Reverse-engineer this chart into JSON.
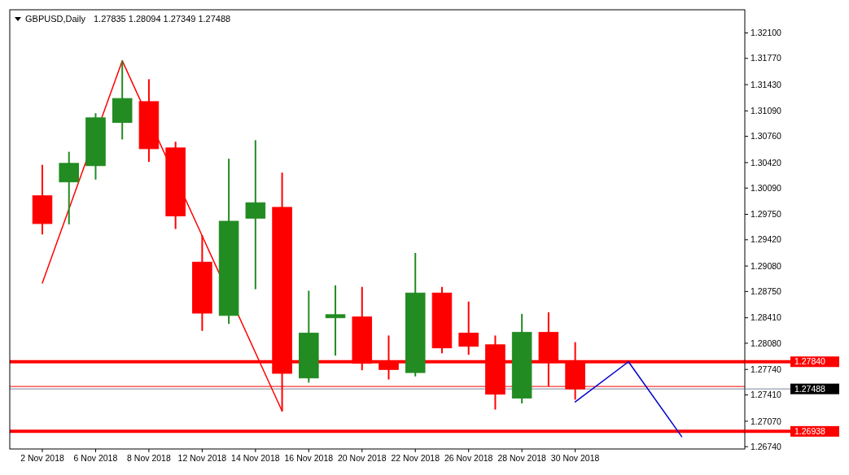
{
  "chart_data": {
    "type": "candlestick",
    "title": "GBPUSD,Daily",
    "subtitle": "1.27835 1.28094 1.27349 1.27488",
    "categories": [
      "2 Nov 2018",
      null,
      "6 Nov 2018",
      null,
      "8 Nov 2018",
      null,
      "12 Nov 2018",
      null,
      "14 Nov 2018",
      null,
      "16 Nov 2018",
      null,
      "20 Nov 2018",
      null,
      "22 Nov 2018",
      null,
      "26 Nov 2018",
      null,
      "28 Nov 2018",
      null,
      "30 Nov 2018",
      null,
      null,
      null,
      null,
      null,
      null
    ],
    "series": [
      {
        "ohlc": [
          [
            1.2999,
            1.3039,
            1.2949,
            1.2963
          ],
          [
            1.3017,
            1.3056,
            1.2962,
            1.3041
          ],
          [
            1.3038,
            1.3106,
            1.302,
            1.31
          ],
          [
            1.3094,
            1.3174,
            1.3072,
            1.3125
          ],
          [
            1.3121,
            1.315,
            1.3043,
            1.306
          ],
          [
            1.3061,
            1.3069,
            1.2956,
            1.2973
          ],
          [
            1.2913,
            1.2948,
            1.2824,
            1.2847
          ],
          [
            1.2844,
            1.3047,
            1.2833,
            1.2966
          ],
          [
            1.297,
            1.3071,
            1.2878,
            1.299
          ],
          [
            1.2984,
            1.3029,
            1.272,
            1.2769
          ],
          [
            1.2763,
            1.2876,
            1.2757,
            1.2821
          ],
          [
            1.2841,
            1.2883,
            1.2792,
            1.2845
          ],
          [
            1.2842,
            1.2881,
            1.2773,
            1.2782
          ],
          [
            1.2783,
            1.2818,
            1.2761,
            1.2774
          ],
          [
            1.277,
            1.2925,
            1.2765,
            1.2873
          ],
          [
            1.2873,
            1.2881,
            1.2795,
            1.2802
          ],
          [
            1.2821,
            1.2862,
            1.2793,
            1.2804
          ],
          [
            1.2806,
            1.2818,
            1.2722,
            1.2742
          ],
          [
            1.2737,
            1.2846,
            1.273,
            1.2822
          ],
          [
            1.2822,
            1.2848,
            1.2752,
            1.2783
          ],
          [
            1.27835,
            1.28094,
            1.27349,
            1.27488
          ],
          null,
          null,
          null,
          null,
          null,
          null
        ],
        "colors": [
          "#ff0000",
          "#228b22",
          "#228b22",
          "#228b22",
          "#ff0000",
          "#ff0000",
          "#ff0000",
          "#228b22",
          "#228b22",
          "#ff0000",
          "#228b22",
          "#228b22",
          "#ff0000",
          "#ff0000",
          "#228b22",
          "#ff0000",
          "#ff0000",
          "#ff0000",
          "#228b22",
          "#ff0000",
          "#ff0000",
          null,
          null,
          null,
          null,
          null,
          null
        ]
      },
      {
        "type": "line",
        "color": "#ff0000",
        "values": [
          1.2886,
          null,
          null,
          1.3174,
          null,
          null,
          null,
          null,
          null,
          1.272,
          null,
          null,
          null,
          null,
          null,
          null,
          null,
          null,
          null,
          null,
          null,
          null,
          null,
          null,
          null,
          null,
          null
        ]
      },
      {
        "type": "line",
        "color": "#0000cc",
        "values": [
          null,
          null,
          null,
          null,
          null,
          null,
          null,
          null,
          null,
          null,
          null,
          null,
          null,
          null,
          null,
          null,
          null,
          null,
          null,
          null,
          1.2732,
          null,
          1.2784,
          null,
          1.2687,
          null,
          null
        ]
      }
    ],
    "ylim": [
      1.2671,
      1.324
    ],
    "yticks": [
      {
        "value": 1.321,
        "label": "1.32100"
      },
      {
        "value": 1.3177,
        "label": "1.31770"
      },
      {
        "value": 1.3143,
        "label": "1.31430"
      },
      {
        "value": 1.3109,
        "label": "1.31090"
      },
      {
        "value": 1.3076,
        "label": "1.30760"
      },
      {
        "value": 1.3042,
        "label": "1.30420"
      },
      {
        "value": 1.3009,
        "label": "1.30090"
      },
      {
        "value": 1.2975,
        "label": "1.29750"
      },
      {
        "value": 1.2942,
        "label": "1.29420"
      },
      {
        "value": 1.2908,
        "label": "1.29080"
      },
      {
        "value": 1.2875,
        "label": "1.28750"
      },
      {
        "value": 1.2841,
        "label": "1.28410"
      },
      {
        "value": 1.2808,
        "label": "1.28080"
      },
      {
        "value": 1.2774,
        "label": "1.27740"
      },
      {
        "value": 1.2741,
        "label": "1.27410"
      },
      {
        "value": 1.2707,
        "label": "1.27070"
      },
      {
        "value": 1.2674,
        "label": "1.26740"
      }
    ],
    "ref_lines": [
      {
        "axis": "y",
        "value": 1.2784,
        "label": "1.27840",
        "color": "#ff0000"
      },
      {
        "axis": "y",
        "value": 1.26938,
        "label": "1.26938",
        "color": "#ff0000"
      },
      {
        "axis": "y",
        "value": 1.2752,
        "label": null,
        "color": "#ff0000"
      },
      {
        "axis": "y",
        "value": 1.27488,
        "label": "1.27488",
        "color": "#778899"
      }
    ],
    "grid": false
  }
}
